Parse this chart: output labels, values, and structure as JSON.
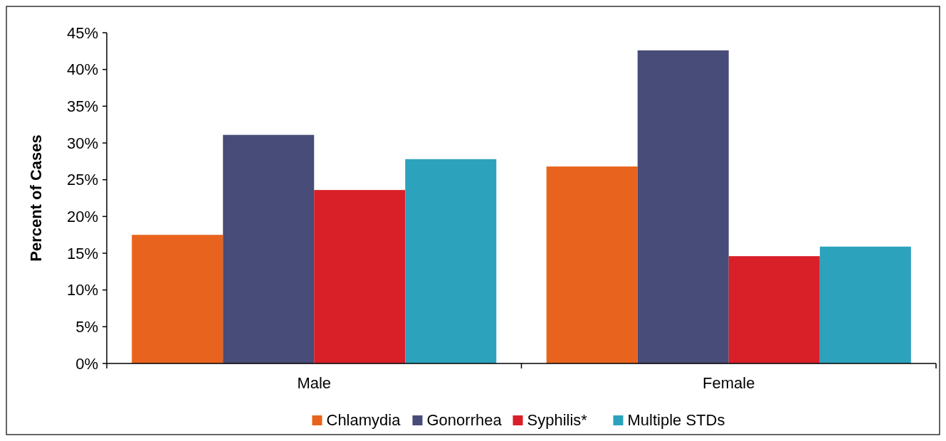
{
  "chart_data": {
    "type": "bar",
    "ylabel": "Percent of Cases",
    "categories": [
      "Male",
      "Female"
    ],
    "series": [
      {
        "name": "Chlamydia",
        "color": "#e8641e",
        "values": [
          17.5,
          26.8
        ]
      },
      {
        "name": "Gonorrhea",
        "color": "#484c78",
        "values": [
          31.1,
          42.6
        ]
      },
      {
        "name": "Syphilis*",
        "color": "#d91f28",
        "values": [
          23.6,
          14.6
        ]
      },
      {
        "name": "Multiple STDs",
        "color": "#2ca2bd",
        "values": [
          27.8,
          15.9
        ]
      }
    ],
    "ylim": [
      0,
      45
    ],
    "yticks": [
      {
        "value": 0,
        "label": "0%"
      },
      {
        "value": 5,
        "label": "5%"
      },
      {
        "value": 10,
        "label": "10%"
      },
      {
        "value": 15,
        "label": "15%"
      },
      {
        "value": 20,
        "label": "20%"
      },
      {
        "value": 25,
        "label": "25%"
      },
      {
        "value": 30,
        "label": "30%"
      },
      {
        "value": 35,
        "label": "35%"
      },
      {
        "value": 40,
        "label": "40%"
      },
      {
        "value": 45,
        "label": "45%"
      }
    ],
    "grid": false,
    "legend": "bottom"
  }
}
